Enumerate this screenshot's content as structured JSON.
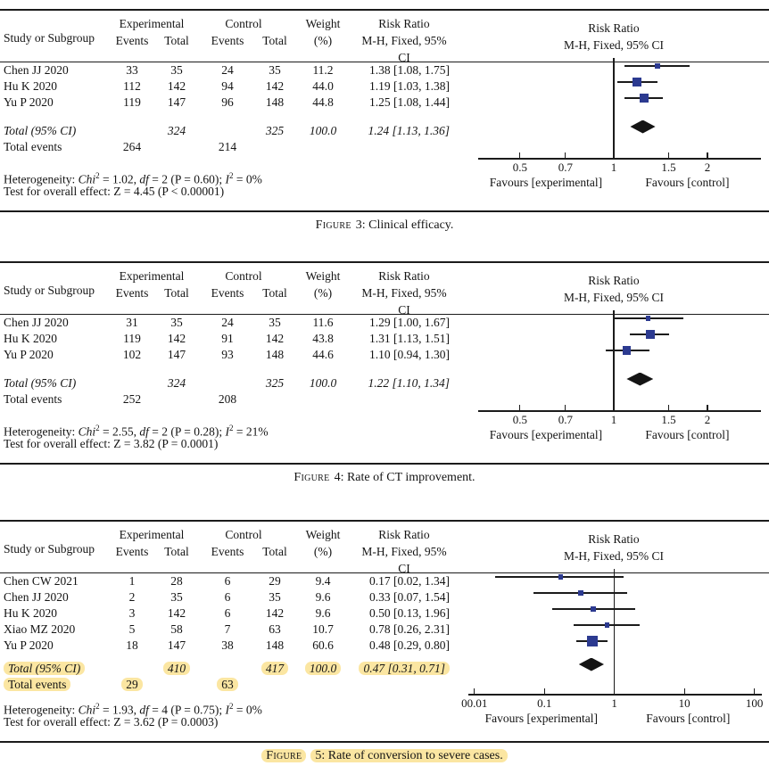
{
  "colors": {
    "marker_blue": "#2c3a90",
    "diamond_black": "#141414",
    "highlight_yellow": "#fbe6a2",
    "rule_black": "#1b1b1b"
  },
  "table_headers": {
    "study": "Study or Subgroup",
    "experimental": "Experimental",
    "control": "Control",
    "events": "Events",
    "total": "Total",
    "weight": "Weight",
    "weight_unit": "(%)",
    "risk_ratio": "Risk Ratio",
    "method": "M-H, Fixed, 95% CI"
  },
  "static_labels": {
    "heterogeneity_prefix": "Heterogeneity: ",
    "chi_word": "Chi",
    "sup_two": "2",
    "df_word": "df",
    "i_word": "I",
    "eq": " = ",
    "comma": ", ",
    "p_open": " (P = ",
    "p_close_semi": "); ",
    "overall_prefix": "Test for overall effect: Z = ",
    "open_paren": " (",
    "close_paren": ")"
  },
  "chart_data": [
    {
      "type": "forest",
      "effect_measure": "Risk Ratio",
      "method": "M-H, Fixed, 95% CI",
      "caption": {
        "word": "Figure",
        "rest": "3: Clinical efficacy.",
        "highlighted": false
      },
      "studies": [
        {
          "study": "Chen JJ 2020",
          "exp_events": "33",
          "exp_total": "35",
          "ctrl_events": "24",
          "ctrl_total": "35",
          "weight": "11.2",
          "rr": 1.38,
          "ci_low": 1.08,
          "ci_high": 1.75,
          "rr_label": "1.38 [1.08, 1.75]"
        },
        {
          "study": "Hu K 2020",
          "exp_events": "112",
          "exp_total": "142",
          "ctrl_events": "94",
          "ctrl_total": "142",
          "weight": "44.0",
          "rr": 1.19,
          "ci_low": 1.03,
          "ci_high": 1.38,
          "rr_label": "1.19 [1.03, 1.38]"
        },
        {
          "study": "Yu P 2020",
          "exp_events": "119",
          "exp_total": "147",
          "ctrl_events": "96",
          "ctrl_total": "148",
          "weight": "44.8",
          "rr": 1.25,
          "ci_low": 1.08,
          "ci_high": 1.44,
          "rr_label": "1.25 [1.08, 1.44]"
        }
      ],
      "total": {
        "label": "Total (95% CI)",
        "exp_total": "324",
        "ctrl_total": "325",
        "weight": "100.0",
        "rr": 1.24,
        "ci_low": 1.13,
        "ci_high": 1.36,
        "rr_label": "1.24 [1.13, 1.36]"
      },
      "total_events": {
        "label": "Total events",
        "exp": "264",
        "ctrl": "214"
      },
      "heterogeneity": {
        "chi2": "1.02",
        "df": "2",
        "p": "0.60",
        "i2": "0%"
      },
      "overall_effect": {
        "z": "4.45",
        "p": "P < 0.00001"
      },
      "highlighted_totals": false,
      "axis": {
        "scale": "log",
        "xlim": [
          0.367,
          2.97
        ],
        "ticks": [
          {
            "v": 0.5,
            "label": "0.5"
          },
          {
            "v": 0.7,
            "label": "0.7"
          },
          {
            "v": 1,
            "label": "1"
          },
          {
            "v": 1.5,
            "label": "1.5"
          },
          {
            "v": 2,
            "label": "2"
          }
        ],
        "favours_left": "Favours [experimental]",
        "favours_right": "Favours [control]"
      }
    },
    {
      "type": "forest",
      "effect_measure": "Risk Ratio",
      "method": "M-H, Fixed, 95% CI",
      "caption": {
        "word": "Figure",
        "rest": "4: Rate of CT improvement.",
        "highlighted": false
      },
      "studies": [
        {
          "study": "Chen JJ 2020",
          "exp_events": "31",
          "exp_total": "35",
          "ctrl_events": "24",
          "ctrl_total": "35",
          "weight": "11.6",
          "rr": 1.29,
          "ci_low": 1.0,
          "ci_high": 1.67,
          "rr_label": "1.29 [1.00, 1.67]"
        },
        {
          "study": "Hu K 2020",
          "exp_events": "119",
          "exp_total": "142",
          "ctrl_events": "91",
          "ctrl_total": "142",
          "weight": "43.8",
          "rr": 1.31,
          "ci_low": 1.13,
          "ci_high": 1.51,
          "rr_label": "1.31 [1.13, 1.51]"
        },
        {
          "study": "Yu P 2020",
          "exp_events": "102",
          "exp_total": "147",
          "ctrl_events": "93",
          "ctrl_total": "148",
          "weight": "44.6",
          "rr": 1.1,
          "ci_low": 0.94,
          "ci_high": 1.3,
          "rr_label": "1.10 [0.94, 1.30]"
        }
      ],
      "total": {
        "label": "Total (95% CI)",
        "exp_total": "324",
        "ctrl_total": "325",
        "weight": "100.0",
        "rr": 1.22,
        "ci_low": 1.1,
        "ci_high": 1.34,
        "rr_label": "1.22 [1.10, 1.34]"
      },
      "total_events": {
        "label": "Total events",
        "exp": "252",
        "ctrl": "208"
      },
      "heterogeneity": {
        "chi2": "2.55",
        "df": "2",
        "p": "0.28",
        "i2": "21%"
      },
      "overall_effect": {
        "z": "3.82",
        "p": "P = 0.0001"
      },
      "highlighted_totals": false,
      "axis": {
        "scale": "log",
        "xlim": [
          0.367,
          2.97
        ],
        "ticks": [
          {
            "v": 0.5,
            "label": "0.5"
          },
          {
            "v": 0.7,
            "label": "0.7"
          },
          {
            "v": 1,
            "label": "1"
          },
          {
            "v": 1.5,
            "label": "1.5"
          },
          {
            "v": 2,
            "label": "2"
          }
        ],
        "favours_left": "Favours [experimental]",
        "favours_right": "Favours [control]"
      }
    },
    {
      "type": "forest",
      "effect_measure": "Risk Ratio",
      "method": "M-H, Fixed, 95% CI",
      "caption": {
        "word": "Figure",
        "rest": "5: Rate of conversion to severe cases.",
        "highlighted": true
      },
      "studies": [
        {
          "study": "Chen CW 2021",
          "exp_events": "1",
          "exp_total": "28",
          "ctrl_events": "6",
          "ctrl_total": "29",
          "weight": "9.4",
          "rr": 0.17,
          "ci_low": 0.02,
          "ci_high": 1.34,
          "rr_label": "0.17 [0.02, 1.34]"
        },
        {
          "study": "Chen JJ 2020",
          "exp_events": "2",
          "exp_total": "35",
          "ctrl_events": "6",
          "ctrl_total": "35",
          "weight": "9.6",
          "rr": 0.33,
          "ci_low": 0.07,
          "ci_high": 1.54,
          "rr_label": "0.33 [0.07, 1.54]"
        },
        {
          "study": "Hu K 2020",
          "exp_events": "3",
          "exp_total": "142",
          "ctrl_events": "6",
          "ctrl_total": "142",
          "weight": "9.6",
          "rr": 0.5,
          "ci_low": 0.13,
          "ci_high": 1.96,
          "rr_label": "0.50 [0.13, 1.96]"
        },
        {
          "study": "Xiao MZ 2020",
          "exp_events": "5",
          "exp_total": "58",
          "ctrl_events": "7",
          "ctrl_total": "63",
          "weight": "10.7",
          "rr": 0.78,
          "ci_low": 0.26,
          "ci_high": 2.31,
          "rr_label": "0.78 [0.26, 2.31]"
        },
        {
          "study": "Yu P 2020",
          "exp_events": "18",
          "exp_total": "147",
          "ctrl_events": "38",
          "ctrl_total": "148",
          "weight": "60.6",
          "rr": 0.48,
          "ci_low": 0.29,
          "ci_high": 0.8,
          "rr_label": "0.48 [0.29, 0.80]"
        }
      ],
      "total": {
        "label": "Total (95% CI)",
        "exp_total": "410",
        "ctrl_total": "417",
        "weight": "100.0",
        "rr": 0.47,
        "ci_low": 0.31,
        "ci_high": 0.71,
        "rr_label": "0.47 [0.31, 0.71]"
      },
      "total_events": {
        "label": "Total events",
        "exp": "29",
        "ctrl": "63"
      },
      "heterogeneity": {
        "chi2": "1.93",
        "df": "4",
        "p": "0.75",
        "i2": "0%"
      },
      "overall_effect": {
        "z": "3.62",
        "p": "P = 0.0003"
      },
      "highlighted_totals": true,
      "axis": {
        "scale": "log",
        "xlim": [
          0.0082,
          128
        ],
        "ticks": [
          {
            "v": 0.01,
            "label": "00.01"
          },
          {
            "v": 0.1,
            "label": "0.1"
          },
          {
            "v": 1,
            "label": "1"
          },
          {
            "v": 10,
            "label": "10"
          },
          {
            "v": 100,
            "label": "100"
          }
        ],
        "favours_left": "Favours [experimental]",
        "favours_right": "Favours [control]"
      }
    }
  ]
}
